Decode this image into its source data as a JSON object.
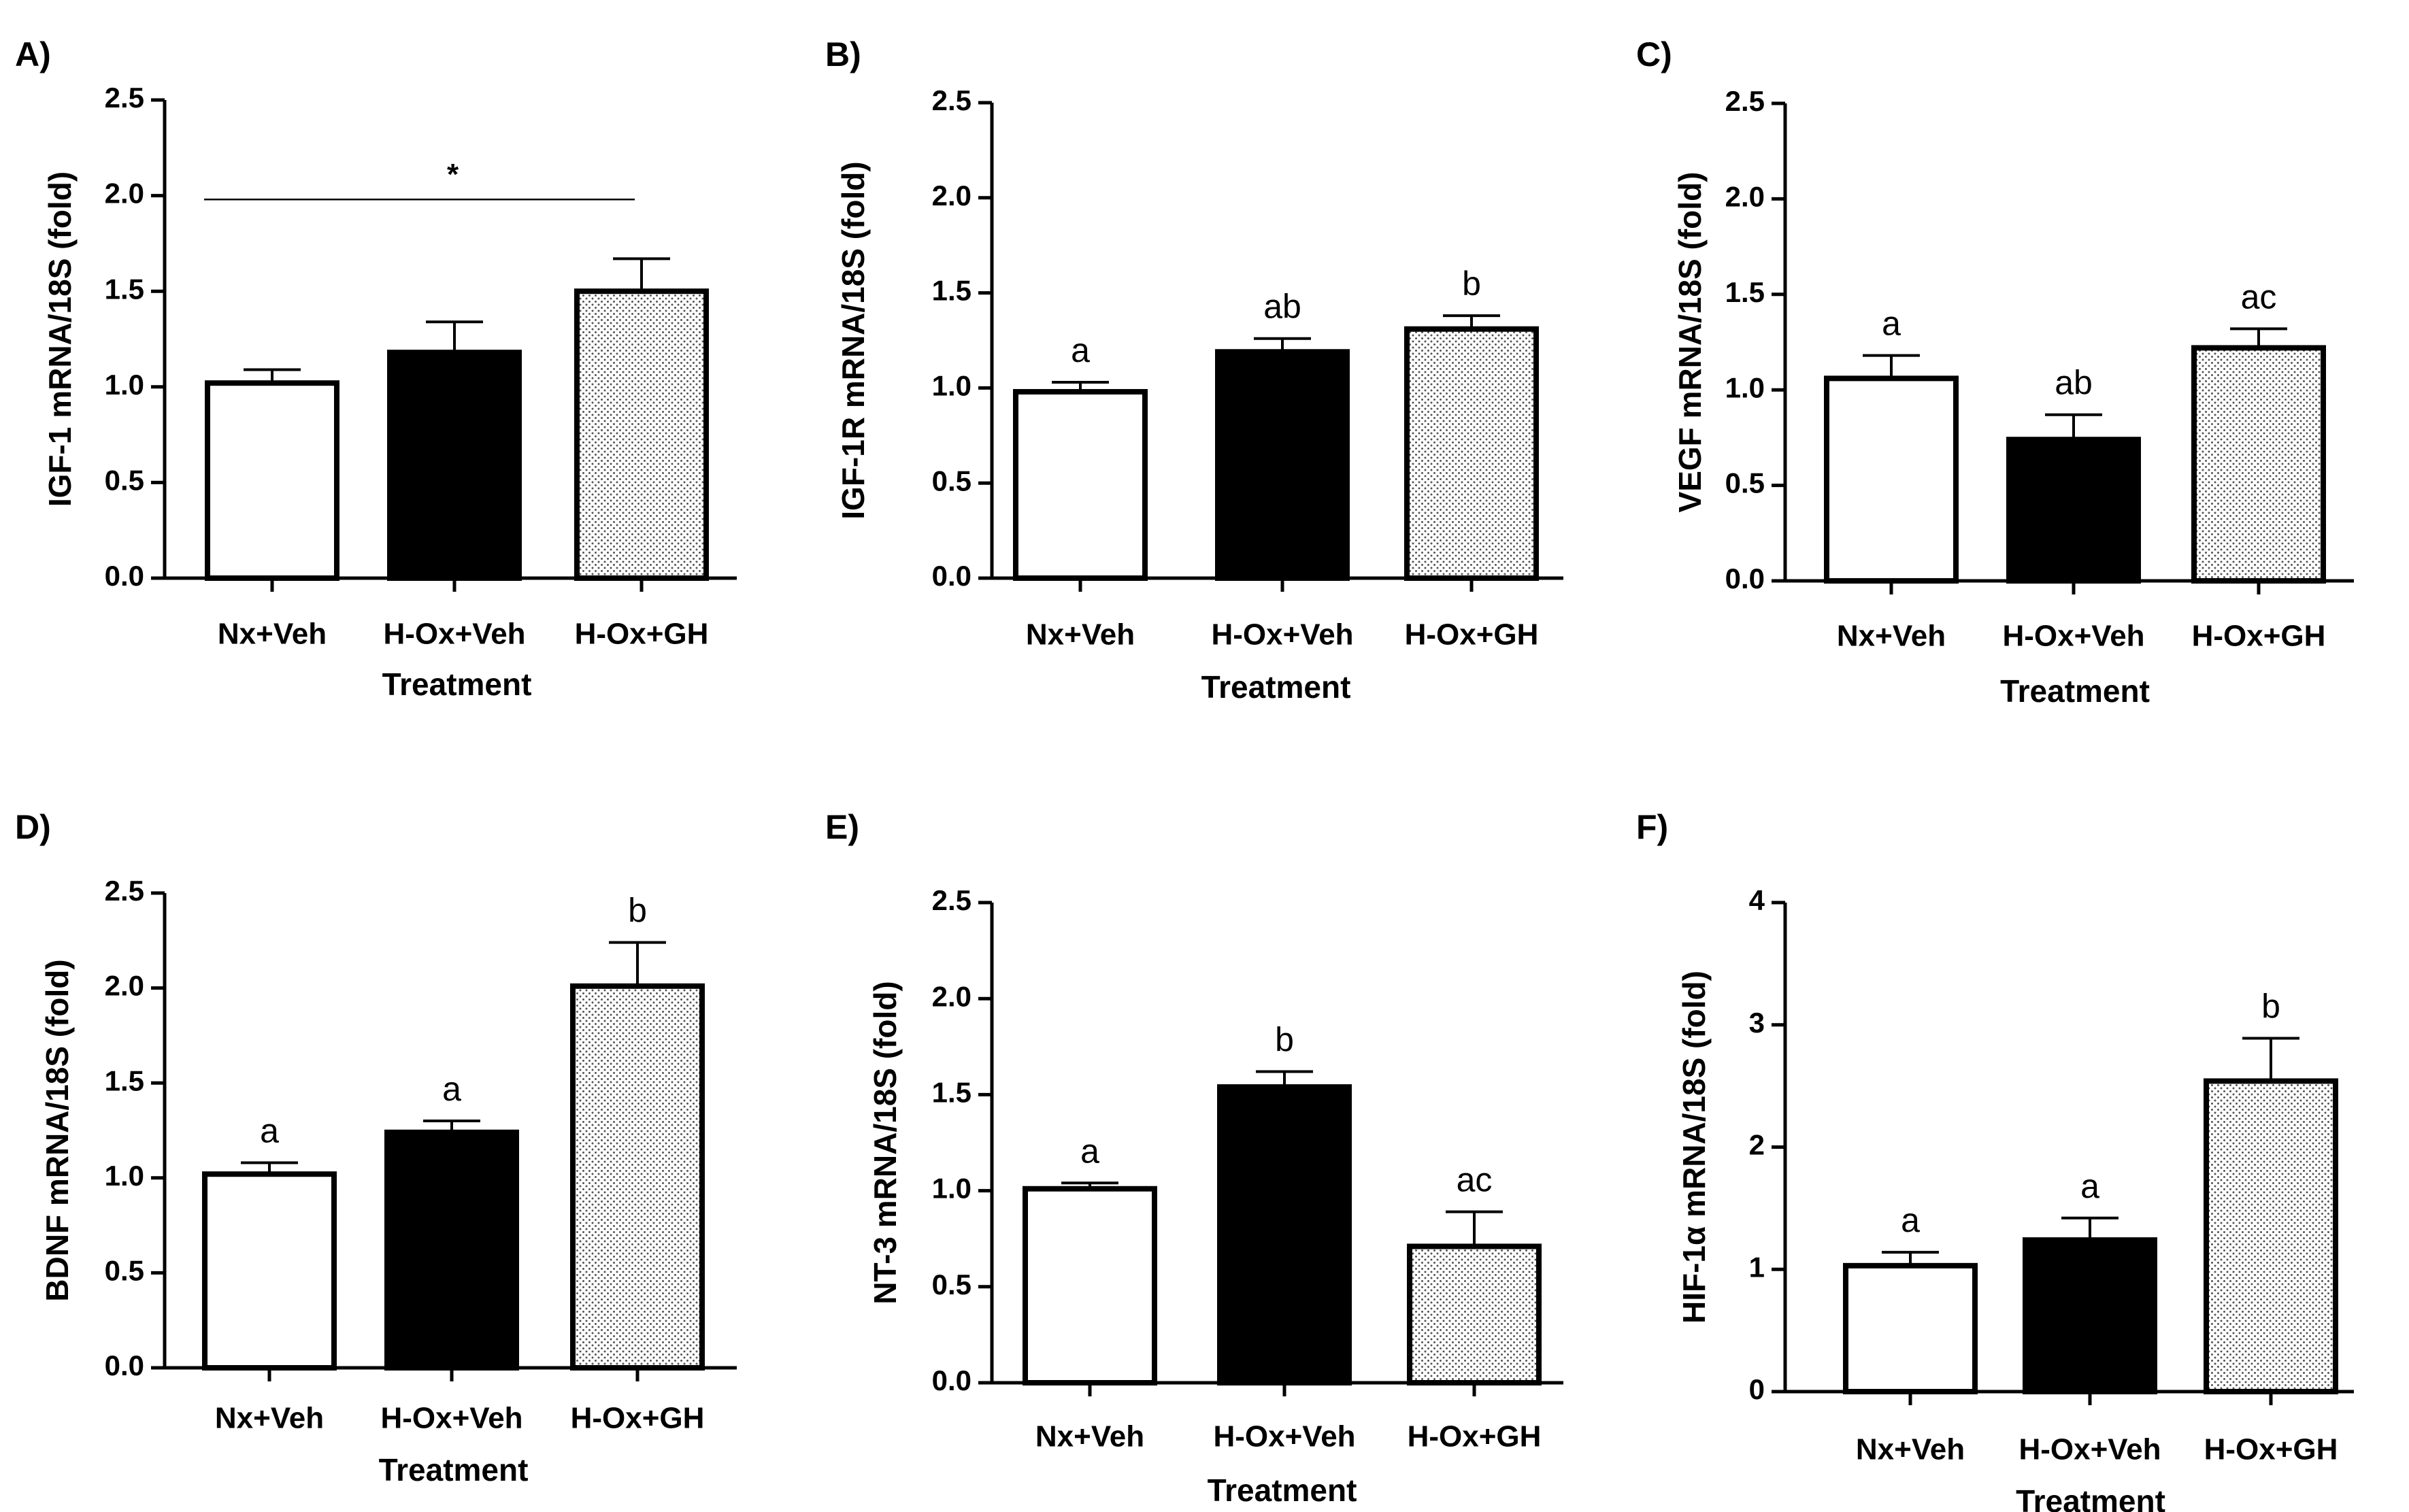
{
  "figure": {
    "colors": {
      "control_fill": "#ffffff",
      "vehicle_fill": "#000000",
      "gh_fill": "dotted-pattern",
      "stroke": "#000000"
    }
  },
  "chart_data": [
    {
      "type": "bar",
      "panel_label": "A)",
      "ylabel": "IGF-1 mRNA/18S (fold)",
      "xlabel": "Treatment",
      "ylim": [
        0,
        2.5
      ],
      "yticks": [
        "0.0",
        "0.5",
        "1.0",
        "1.5",
        "2.0",
        "2.5"
      ],
      "categories": [
        "Nx+Veh",
        "H-Ox+Veh",
        "H-Ox+GH"
      ],
      "values": [
        1.02,
        1.18,
        1.5
      ],
      "errors": [
        0.07,
        0.16,
        0.17
      ],
      "sig_labels": [
        "",
        "",
        ""
      ],
      "bracket": {
        "from": 0,
        "to": 2,
        "y": 1.98,
        "label": "*"
      }
    },
    {
      "type": "bar",
      "panel_label": "B)",
      "ylabel": "IGF-1R mRNA/18S (fold)",
      "xlabel": "Treatment",
      "ylim": [
        0,
        2.5
      ],
      "yticks": [
        "0.0",
        "0.5",
        "1.0",
        "1.5",
        "2.0",
        "2.5"
      ],
      "categories": [
        "Nx+Veh",
        "H-Ox+Veh",
        "H-Ox+GH"
      ],
      "values": [
        0.98,
        1.19,
        1.31
      ],
      "errors": [
        0.05,
        0.07,
        0.07
      ],
      "sig_labels": [
        "a",
        "ab",
        "b"
      ]
    },
    {
      "type": "bar",
      "panel_label": "C)",
      "ylabel": "VEGF mRNA/18S (fold)",
      "xlabel": "Treatment",
      "ylim": [
        0,
        2.5
      ],
      "yticks": [
        "0.0",
        "0.5",
        "1.0",
        "1.5",
        "2.0",
        "2.5"
      ],
      "categories": [
        "Nx+Veh",
        "H-Ox+Veh",
        "H-Ox+GH"
      ],
      "values": [
        1.06,
        0.74,
        1.22
      ],
      "errors": [
        0.12,
        0.13,
        0.1
      ],
      "sig_labels": [
        "a",
        "ab",
        "ac"
      ]
    },
    {
      "type": "bar",
      "panel_label": "D)",
      "ylabel": "BDNF mRNA/18S (fold)",
      "xlabel": "Treatment",
      "ylim": [
        0,
        2.5
      ],
      "yticks": [
        "0.0",
        "0.5",
        "1.0",
        "1.5",
        "2.0",
        "2.5"
      ],
      "categories": [
        "Nx+Veh",
        "H-Ox+Veh",
        "H-Ox+GH"
      ],
      "values": [
        1.02,
        1.24,
        2.01
      ],
      "errors": [
        0.06,
        0.06,
        0.23
      ],
      "sig_labels": [
        "a",
        "a",
        "b"
      ]
    },
    {
      "type": "bar",
      "panel_label": "E)",
      "ylabel": "NT-3 mRNA/18S (fold)",
      "xlabel": "Treatment",
      "ylim": [
        0,
        2.5
      ],
      "yticks": [
        "0.0",
        "0.5",
        "1.0",
        "1.5",
        "2.0",
        "2.5"
      ],
      "categories": [
        "Nx+Veh",
        "H-Ox+Veh",
        "H-Ox+GH"
      ],
      "values": [
        1.01,
        1.54,
        0.71
      ],
      "errors": [
        0.03,
        0.08,
        0.18
      ],
      "sig_labels": [
        "a",
        "b",
        "ac"
      ]
    },
    {
      "type": "bar",
      "panel_label": "F)",
      "ylabel": "HIF-1α mRNA/18S (fold)",
      "xlabel": "Treatment",
      "ylim": [
        0,
        4
      ],
      "yticks": [
        "0",
        "1",
        "2",
        "3",
        "4"
      ],
      "categories": [
        "Nx+Veh",
        "H-Ox+Veh",
        "H-Ox+GH"
      ],
      "values": [
        1.03,
        1.24,
        2.54
      ],
      "errors": [
        0.11,
        0.18,
        0.35
      ],
      "sig_labels": [
        "a",
        "a",
        "b"
      ]
    }
  ]
}
